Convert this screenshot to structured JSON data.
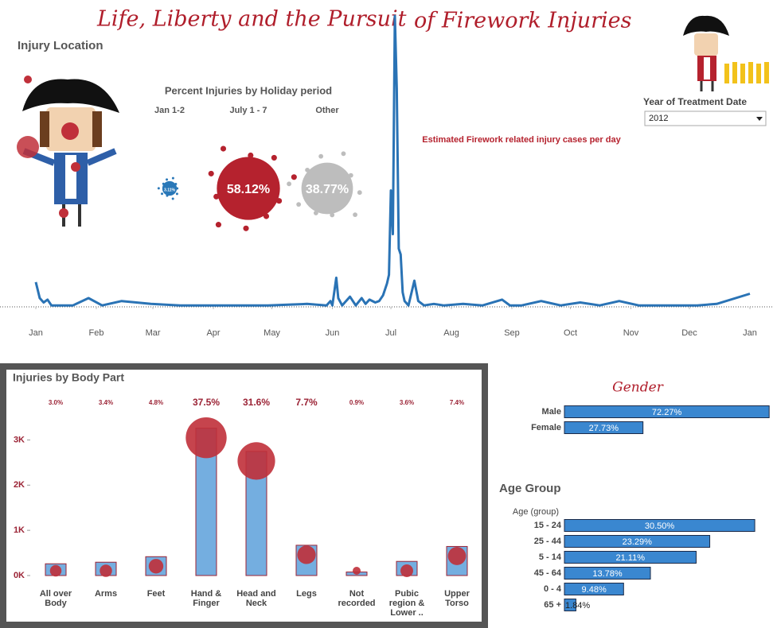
{
  "header": {
    "title_part1": "Life, Liberty and the Pursuit",
    "title_part2": "of Firework Injuries",
    "section": "Injury Location"
  },
  "filter": {
    "label": "Year of Treatment Date",
    "selected": "2012"
  },
  "chart_data": [
    {
      "type": "bubble",
      "title": "Percent Injuries by Holiday period",
      "categories": [
        "Jan 1-2",
        "July 1 - 7",
        "Other"
      ],
      "values": [
        3.11,
        58.12,
        38.77
      ],
      "value_labels": [
        "3.11%",
        "58.12%",
        "38.77%"
      ],
      "colors": [
        "#2a78b8",
        "#b5222e",
        "#bdbdbd"
      ]
    },
    {
      "type": "line",
      "title": "Estimated Firework related injury cases per day",
      "color": "#2a73b5",
      "x": [
        1,
        3,
        5,
        7,
        9,
        14,
        20,
        28,
        35,
        45,
        60,
        75,
        90,
        100,
        120,
        140,
        150,
        152,
        153,
        155,
        156,
        158,
        162,
        165,
        168,
        170,
        172,
        175,
        177,
        179,
        181,
        182,
        183,
        184,
        185,
        186,
        187,
        188,
        189,
        190,
        192,
        195,
        197,
        200,
        205,
        210,
        220,
        230,
        240,
        244,
        250,
        260,
        270,
        280,
        290,
        300,
        310,
        320,
        330,
        340,
        350,
        367
      ],
      "values": [
        85,
        30,
        15,
        25,
        5,
        5,
        5,
        30,
        5,
        20,
        10,
        5,
        5,
        5,
        5,
        10,
        5,
        20,
        5,
        100,
        30,
        5,
        35,
        5,
        30,
        10,
        25,
        15,
        20,
        40,
        80,
        110,
        400,
        250,
        1000,
        750,
        200,
        180,
        50,
        20,
        5,
        90,
        20,
        5,
        10,
        5,
        10,
        5,
        25,
        5,
        5,
        20,
        5,
        15,
        5,
        20,
        5,
        5,
        5,
        5,
        10,
        45
      ],
      "xlim": [
        1,
        367
      ],
      "ylim": [
        0,
        1000
      ],
      "xticks": [
        {
          "value": 1,
          "label": "Jan"
        },
        {
          "value": 32,
          "label": "Feb"
        },
        {
          "value": 61,
          "label": "Mar"
        },
        {
          "value": 92,
          "label": "Apr"
        },
        {
          "value": 122,
          "label": "May"
        },
        {
          "value": 153,
          "label": "Jun"
        },
        {
          "value": 183,
          "label": "Jul"
        },
        {
          "value": 214,
          "label": "Aug"
        },
        {
          "value": 245,
          "label": "Sep"
        },
        {
          "value": 275,
          "label": "Oct"
        },
        {
          "value": 306,
          "label": "Nov"
        },
        {
          "value": 336,
          "label": "Dec"
        },
        {
          "value": 367,
          "label": "Jan"
        }
      ]
    },
    {
      "type": "bar",
      "title": "Injuries by Body Part",
      "color": "#74aee0",
      "edge": "#9b2335",
      "categories": [
        "All over Body",
        "Arms",
        "Feet",
        "Hand & Finger",
        "Head and Neck",
        "Legs",
        "Not recorded",
        "Pubic region & Lower ..",
        "Upper Torso"
      ],
      "values": [
        260,
        295,
        417,
        3260,
        2746,
        670,
        78,
        313,
        643
      ],
      "percent_labels": [
        "3.0%",
        "3.4%",
        "4.8%",
        "37.5%",
        "31.6%",
        "7.7%",
        "0.9%",
        "3.6%",
        "7.4%"
      ],
      "ylim": [
        0,
        3500
      ],
      "yticks": [
        {
          "value": 0,
          "label": "0K"
        },
        {
          "value": 1000,
          "label": "1K"
        },
        {
          "value": 2000,
          "label": "2K"
        },
        {
          "value": 3000,
          "label": "3K"
        }
      ]
    },
    {
      "type": "hbar",
      "title": "Gender",
      "color": "#3a87d0",
      "categories": [
        "Male",
        "Female"
      ],
      "values": [
        72.27,
        27.73
      ],
      "value_labels": [
        "72.27%",
        "27.73%"
      ],
      "xlim": [
        0,
        72.5
      ]
    },
    {
      "type": "hbar",
      "title": "Age Group",
      "axis_label": "Age (group)",
      "color": "#3a87d0",
      "categories": [
        "15 - 24",
        "25 - 44",
        "5 - 14",
        "45 - 64",
        "0 - 4",
        "65 +"
      ],
      "values": [
        30.5,
        23.29,
        21.11,
        13.78,
        9.48,
        1.84
      ],
      "value_labels": [
        "30.50%",
        "23.29%",
        "21.11%",
        "13.78%",
        "9.48%",
        "1.84%"
      ],
      "xlim": [
        0,
        31
      ]
    }
  ]
}
